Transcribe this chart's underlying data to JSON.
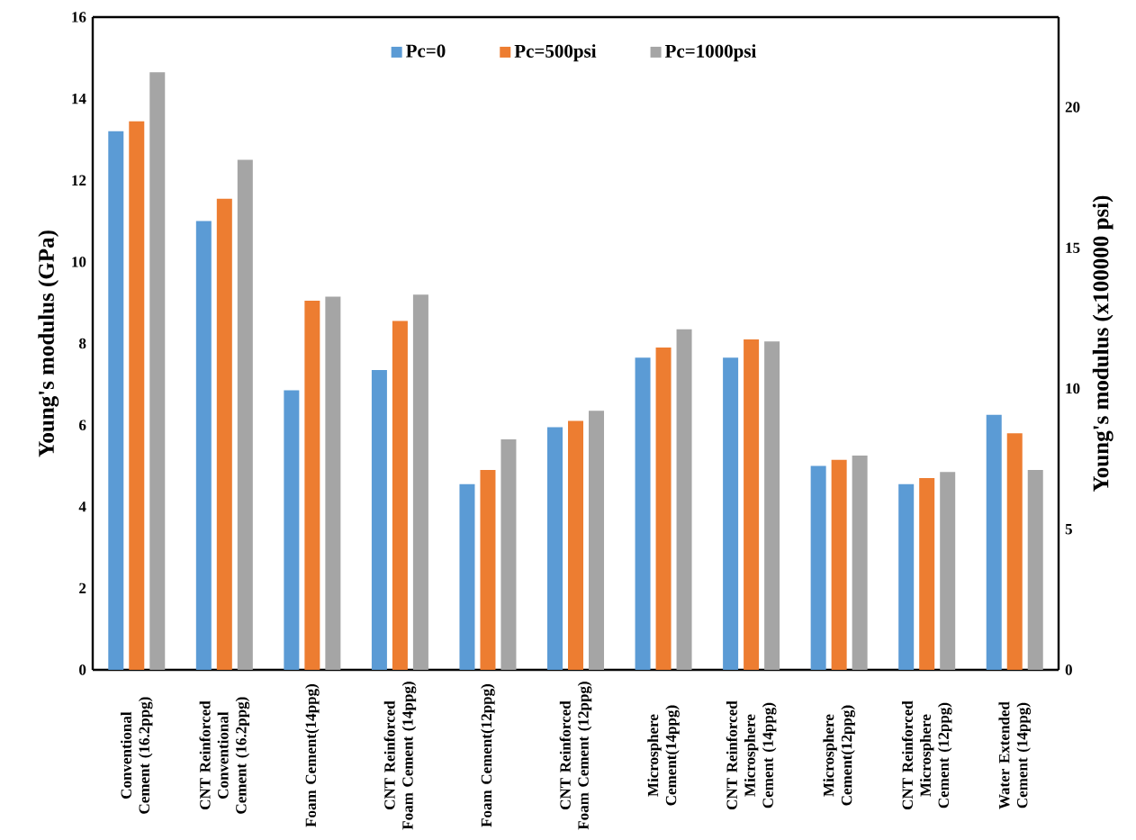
{
  "chart_data": {
    "type": "bar",
    "categories": [
      "Conventional Cement (16.2ppg)",
      "CNT Reinforced Conventional Cement (16.2ppg)",
      "Foam Cement(14ppg)",
      "CNT Reinforced Foam Cement (14ppg)",
      "Foam Cement(12ppg)",
      "CNT Reinforced Foam Cement (12ppg)",
      "Microsphere Cement(14ppg)",
      "CNT Reinforced Microsphere Cement (14ppg)",
      "Microsphere Cement(12ppg)",
      "CNT Reinforced Microsphere Cement (12ppg)",
      "Water Extended Cement (14ppg)"
    ],
    "series": [
      {
        "name": "Pc=0",
        "color": "#5b9bd5",
        "values": [
          13.2,
          11.0,
          6.85,
          7.35,
          4.55,
          5.95,
          7.65,
          7.65,
          5.0,
          4.55,
          6.25
        ]
      },
      {
        "name": "Pc=500psi",
        "color": "#ed7d31",
        "values": [
          13.45,
          11.55,
          9.05,
          8.55,
          4.9,
          6.1,
          7.9,
          8.1,
          5.15,
          4.7,
          5.8
        ]
      },
      {
        "name": "Pc=1000psi",
        "color": "#a5a5a5",
        "values": [
          14.65,
          12.5,
          9.15,
          9.2,
          5.65,
          6.35,
          8.35,
          8.05,
          5.25,
          4.85,
          4.9
        ]
      }
    ],
    "ylabel": "Young's modulus (GPa)",
    "y2label": "Young's modulus (x100000 psi)",
    "ylim": [
      0,
      16
    ],
    "yticks": [
      0,
      2,
      4,
      6,
      8,
      10,
      12,
      14,
      16
    ],
    "y2lim": [
      0,
      23.2
    ],
    "y2ticks": [
      0,
      5,
      10,
      15,
      20
    ],
    "legend": "top"
  }
}
